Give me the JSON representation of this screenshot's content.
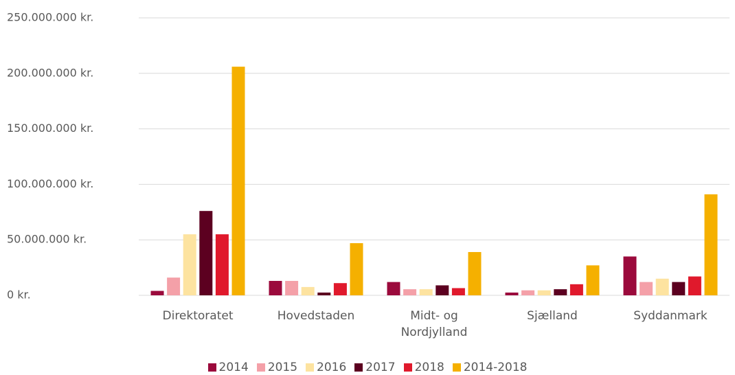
{
  "chart_data": {
    "type": "bar",
    "categories": [
      "Direktoratet",
      "Hovedstaden",
      "Midt- og Nordjylland",
      "Sjælland",
      "Syddanmark"
    ],
    "series": [
      {
        "name": "2014",
        "color": "#9b0a3c",
        "values": [
          4000000,
          13000000,
          12000000,
          2500000,
          35000000
        ]
      },
      {
        "name": "2015",
        "color": "#f4a0a8",
        "values": [
          16000000,
          13000000,
          5500000,
          4500000,
          12000000
        ]
      },
      {
        "name": "2016",
        "color": "#fde3a0",
        "values": [
          55000000,
          7500000,
          5500000,
          4500000,
          15000000
        ]
      },
      {
        "name": "2017",
        "color": "#5c0020",
        "values": [
          76000000,
          2500000,
          9000000,
          5500000,
          12000000
        ]
      },
      {
        "name": "2018",
        "color": "#e0192c",
        "values": [
          55000000,
          11000000,
          6500000,
          10000000,
          17000000
        ]
      },
      {
        "name": "2014-2018",
        "color": "#f5b000",
        "values": [
          206000000,
          47000000,
          39000000,
          27000000,
          91000000
        ]
      }
    ],
    "ylim": [
      0,
      250000000
    ],
    "yticks": [
      {
        "value": 0,
        "label": "0 kr."
      },
      {
        "value": 50000000,
        "label": "50.000.000 kr."
      },
      {
        "value": 100000000,
        "label": "100.000.000 kr."
      },
      {
        "value": 150000000,
        "label": "150.000.000 kr."
      },
      {
        "value": 200000000,
        "label": "200.000.000 kr."
      },
      {
        "value": 250000000,
        "label": "250.000.000 kr."
      }
    ],
    "grid": true,
    "legend": "bottom"
  }
}
